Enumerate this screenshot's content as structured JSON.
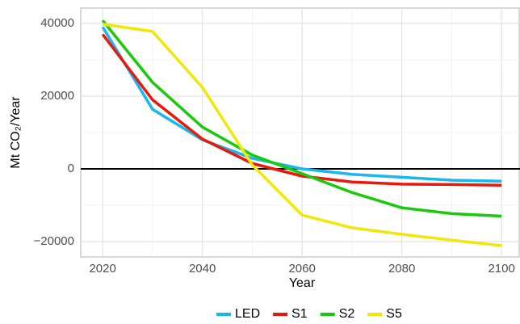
{
  "chart_data": {
    "type": "line",
    "y_label": "Mt CO₂/Year",
    "x_label": "Year",
    "x": [
      2020,
      2030,
      2040,
      2050,
      2060,
      2070,
      2080,
      2090,
      2100
    ],
    "series": [
      {
        "name": "LED",
        "color": "#1ab6f0",
        "values": [
          39000,
          16400,
          8000,
          2900,
          0,
          -1500,
          -2300,
          -3100,
          -3400
        ]
      },
      {
        "name": "S1",
        "color": "#e8190b",
        "values": [
          37000,
          19000,
          8200,
          1500,
          -2000,
          -3600,
          -4200,
          -4300,
          -4500
        ]
      },
      {
        "name": "S2",
        "color": "#19c90c",
        "values": [
          40800,
          23800,
          11500,
          3800,
          -1300,
          -6500,
          -10700,
          -12300,
          -13000
        ]
      },
      {
        "name": "S5",
        "color": "#f0e80a",
        "values": [
          39800,
          37800,
          22400,
          1100,
          -12700,
          -16200,
          -18000,
          -19600,
          -21100
        ]
      }
    ],
    "xlim": [
      2015.6,
      2103.7
    ],
    "ylim": [
      -24222,
      44222
    ],
    "xticks": [
      2020,
      2040,
      2060,
      2080,
      2100
    ],
    "yticks": [
      {
        "value": -20000,
        "label": "−20000"
      },
      0,
      20000,
      40000
    ],
    "grid": true,
    "legend": "bottom"
  }
}
